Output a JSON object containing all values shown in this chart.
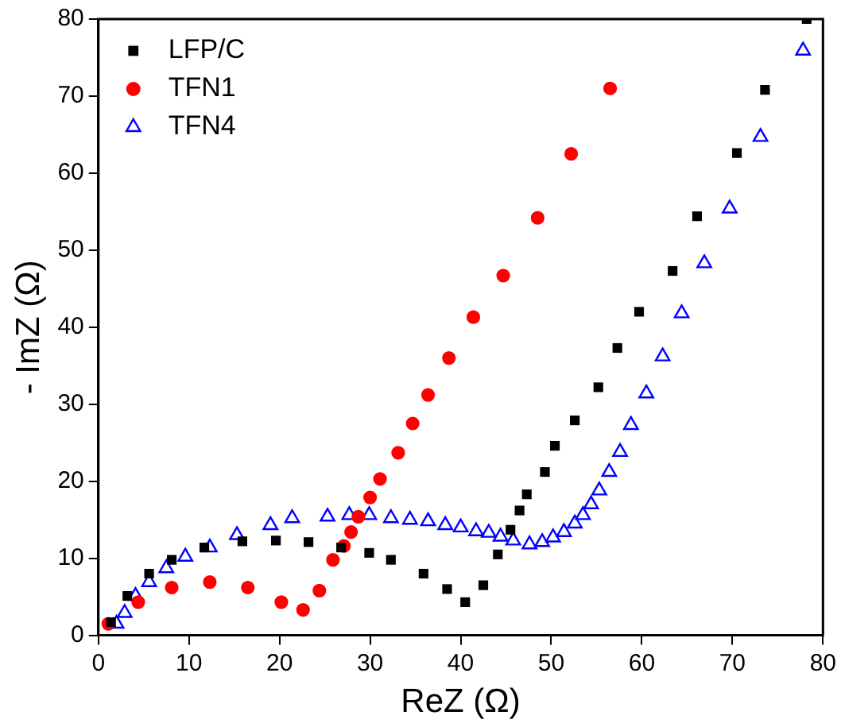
{
  "chart_data": {
    "type": "scatter",
    "xlabel": "ReZ (Ω)",
    "ylabel": "- ImZ (Ω)",
    "xlim": [
      0,
      80
    ],
    "ylim": [
      0,
      80
    ],
    "xticks": [
      0,
      10,
      20,
      30,
      40,
      50,
      60,
      70,
      80
    ],
    "yticks": [
      0,
      10,
      20,
      30,
      40,
      50,
      60,
      70,
      80
    ],
    "grid": false,
    "legend": "top left",
    "series": [
      {
        "name": "LFP/C",
        "color": "#000000",
        "marker": "square",
        "x": [
          1.4,
          3.2,
          5.6,
          8.1,
          11.7,
          15.9,
          19.6,
          23.2,
          26.8,
          29.9,
          32.3,
          35.9,
          38.5,
          40.5,
          42.5,
          44.1,
          45.5,
          46.5,
          47.3,
          49.3,
          50.4,
          52.6,
          55.2,
          57.3,
          59.7,
          63.4,
          66.1,
          70.5,
          73.6,
          78.2
        ],
        "values": [
          1.7,
          5.1,
          8.0,
          9.8,
          11.4,
          12.2,
          12.3,
          12.1,
          11.4,
          10.7,
          9.8,
          8.0,
          6.0,
          4.3,
          6.5,
          10.5,
          13.7,
          16.2,
          18.3,
          21.2,
          24.6,
          27.9,
          32.2,
          37.3,
          42.0,
          47.3,
          54.4,
          62.6,
          70.8,
          80
        ]
      },
      {
        "name": "TFN1",
        "color": "#ff0000",
        "marker": "circle",
        "x": [
          1.1,
          4.4,
          8.1,
          12.3,
          16.5,
          20.2,
          22.6,
          24.4,
          25.9,
          27.1,
          27.9,
          28.7,
          30.0,
          31.1,
          33.1,
          34.7,
          36.4,
          38.7,
          41.4,
          44.7,
          48.5,
          52.2,
          56.5
        ],
        "values": [
          1.5,
          4.3,
          6.2,
          6.9,
          6.2,
          4.3,
          3.3,
          5.8,
          9.8,
          11.6,
          13.4,
          15.4,
          17.9,
          20.3,
          23.7,
          27.5,
          31.2,
          36.0,
          41.3,
          46.7,
          54.2,
          62.5,
          71.0
        ]
      },
      {
        "name": "TFN4",
        "color": "#0000ff",
        "marker": "triangle",
        "x": [
          2.0,
          2.9,
          4.1,
          5.6,
          7.5,
          9.6,
          12.3,
          15.3,
          19.0,
          21.4,
          25.3,
          27.7,
          29.9,
          32.3,
          34.4,
          36.4,
          38.3,
          40.0,
          41.7,
          43.1,
          44.4,
          45.8,
          47.6,
          49.0,
          50.2,
          51.4,
          52.6,
          53.5,
          54.4,
          55.3,
          56.4,
          57.6,
          58.8,
          60.5,
          62.3,
          64.4,
          66.9,
          69.7,
          73.1,
          77.8
        ],
        "values": [
          1.5,
          2.9,
          5.1,
          6.9,
          8.7,
          10.2,
          11.4,
          13.0,
          14.3,
          15.2,
          15.4,
          15.6,
          15.6,
          15.2,
          15.0,
          14.8,
          14.3,
          14.0,
          13.5,
          13.3,
          12.8,
          12.3,
          11.8,
          12.1,
          12.7,
          13.4,
          14.5,
          15.6,
          17.0,
          18.8,
          21.2,
          23.8,
          27.3,
          31.4,
          36.2,
          41.8,
          48.3,
          55.4,
          64.7,
          75.9
        ]
      }
    ]
  }
}
